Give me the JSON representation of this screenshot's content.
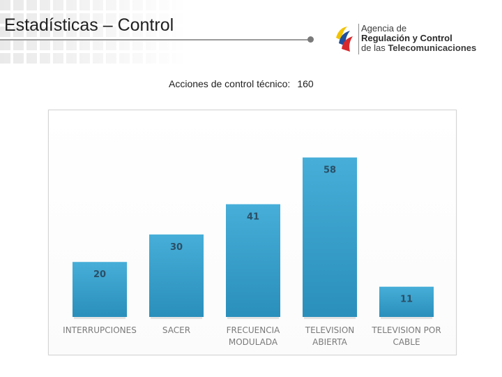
{
  "header": {
    "title": "Estadísticas – Control",
    "logo": {
      "line1": "Agencia de",
      "line2": "Regulación y Control",
      "line3_prefix": "de las ",
      "line3_bold": "Telecomunicaciones",
      "colors": [
        "#f2c300",
        "#1f4e9c",
        "#d6282c"
      ]
    }
  },
  "summary": {
    "label": "Acciones de control técnico:",
    "value": "160"
  },
  "colors": {
    "bar_top": "#46aed8",
    "bar_bottom": "#2a8fbb",
    "bar_label": "#2b4f66",
    "category_label": "#7a7a7a"
  },
  "chart_data": {
    "type": "bar",
    "title": "",
    "xlabel": "",
    "ylabel": "",
    "ylim": [
      0,
      65
    ],
    "grid": false,
    "categories": [
      [
        "INTERRUPCIONES"
      ],
      [
        "SACER"
      ],
      [
        "FRECUENCIA",
        "MODULADA"
      ],
      [
        "TELEVISION",
        "ABIERTA"
      ],
      [
        "TELEVISION POR",
        "CABLE"
      ]
    ],
    "values": [
      20,
      30,
      41,
      58,
      11
    ]
  }
}
